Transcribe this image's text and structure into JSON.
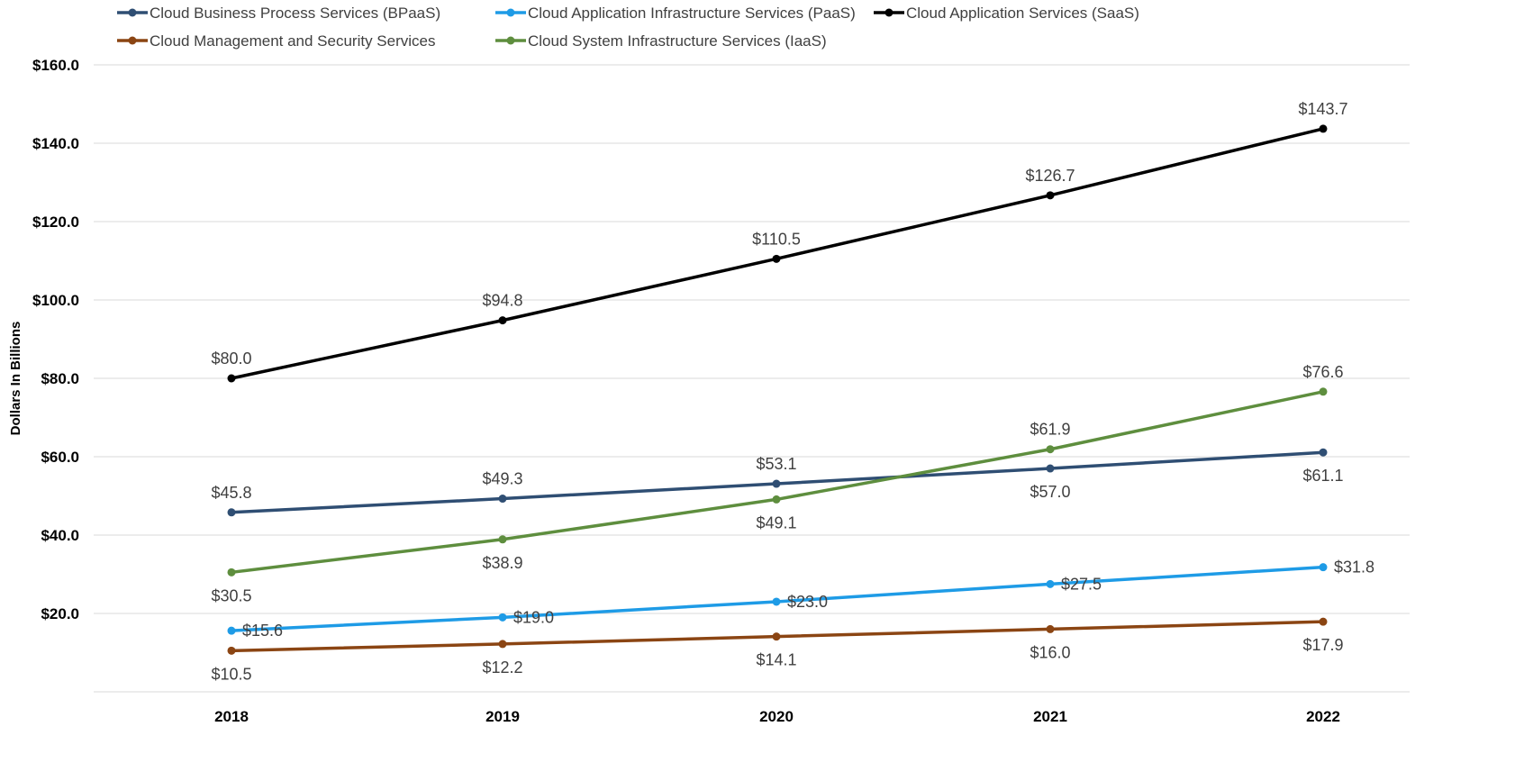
{
  "chart_data": {
    "type": "line",
    "title": "",
    "xlabel": "",
    "ylabel": "Dollars In Billions",
    "categories": [
      "2018",
      "2019",
      "2020",
      "2021",
      "2022"
    ],
    "ylim": [
      0,
      160
    ],
    "yticks": [
      "$20.0",
      "$40.0",
      "$60.0",
      "$80.0",
      "$100.0",
      "$120.0",
      "$140.0",
      "$160.0"
    ],
    "grid": true,
    "legend_position": "top",
    "series": [
      {
        "name": "Cloud Business Process Services (BPaaS)",
        "color": "#2F4E73",
        "values": [
          45.8,
          49.3,
          53.1,
          57.0,
          61.1
        ],
        "labels": [
          "$45.8",
          "$49.3",
          "$53.1",
          "$57.0",
          "$61.1"
        ],
        "label_pos": [
          "above",
          "above",
          "above",
          "below",
          "below"
        ]
      },
      {
        "name": "Cloud Application Infrastructure Services (PaaS)",
        "color": "#1E9BE6",
        "values": [
          15.6,
          19.0,
          23.0,
          27.5,
          31.8
        ],
        "labels": [
          "$15.6",
          "$19.0",
          "$23.0",
          "$27.5",
          "$31.8"
        ],
        "label_pos": [
          "right",
          "right",
          "right",
          "right",
          "right"
        ]
      },
      {
        "name": "Cloud Application Services (SaaS)",
        "color": "#000000",
        "values": [
          80.0,
          94.8,
          110.5,
          126.7,
          143.7
        ],
        "labels": [
          "$80.0",
          "$94.8",
          "$110.5",
          "$126.7",
          "$143.7"
        ],
        "label_pos": [
          "above",
          "above",
          "above",
          "above",
          "above"
        ]
      },
      {
        "name": "Cloud Management and Security Services",
        "color": "#8B4513",
        "values": [
          10.5,
          12.2,
          14.1,
          16.0,
          17.9
        ],
        "labels": [
          "$10.5",
          "$12.2",
          "$14.1",
          "$16.0",
          "$17.9"
        ],
        "label_pos": [
          "below",
          "below",
          "below",
          "below",
          "below"
        ]
      },
      {
        "name": "Cloud System Infrastructure Services (IaaS)",
        "color": "#5E8E3E",
        "values": [
          30.5,
          38.9,
          49.1,
          61.9,
          76.6
        ],
        "labels": [
          "$30.5",
          "$38.9",
          "$49.1",
          "$61.9",
          "$76.6"
        ],
        "label_pos": [
          "below",
          "below",
          "below",
          "above",
          "above"
        ]
      }
    ]
  }
}
